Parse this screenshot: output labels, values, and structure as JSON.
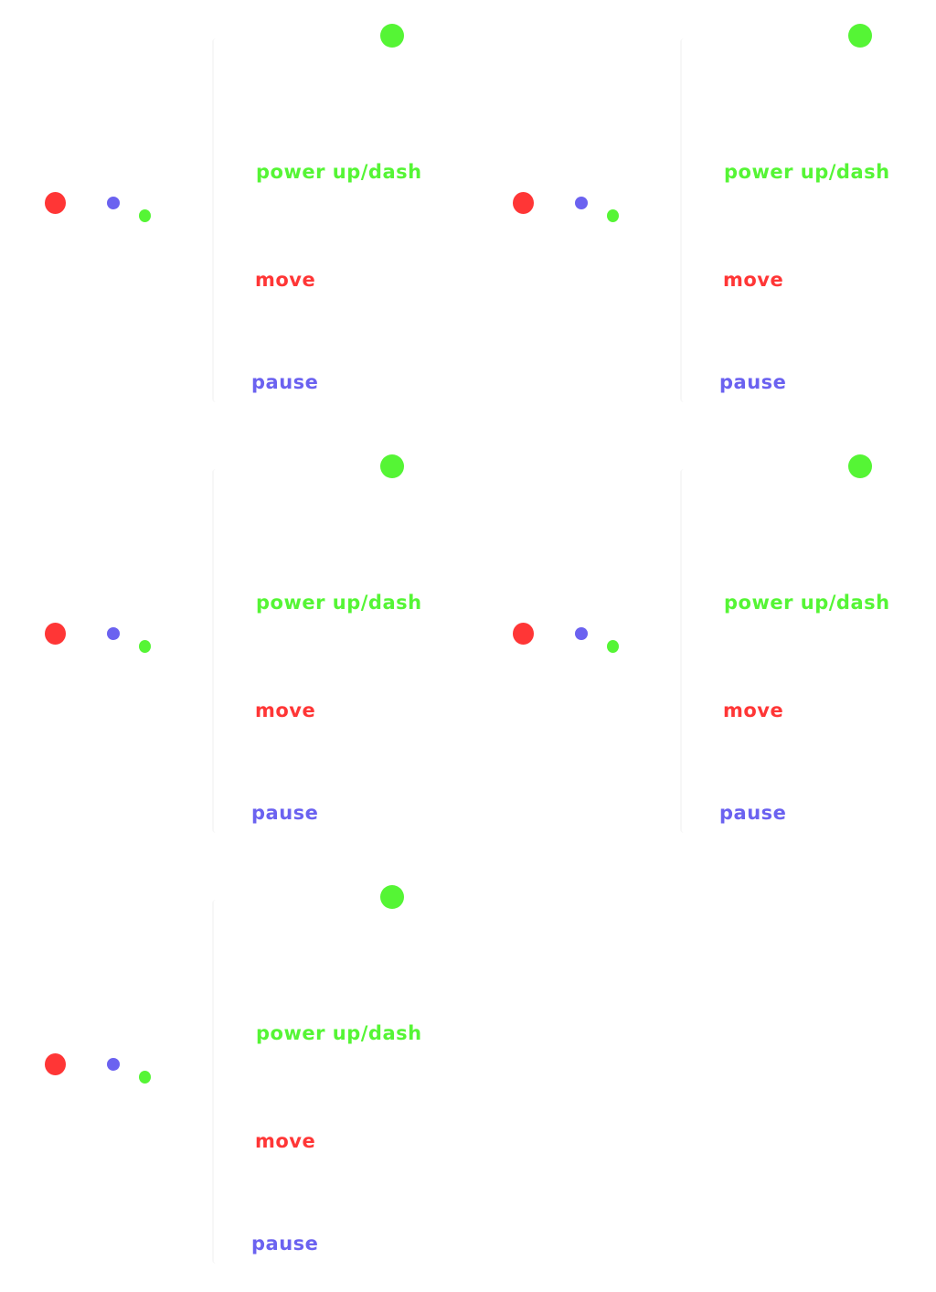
{
  "colors": {
    "red": "#ff3636",
    "blue": "#6b62f0",
    "green": "#55f535"
  },
  "icons": {
    "move_button": "red-dot-icon",
    "pause_button": "blue-dot-icon",
    "dash_button": "green-dot-icon"
  },
  "panels": [
    {
      "labels": {
        "dash": "power up/dash",
        "move": "move",
        "pause": "pause"
      }
    },
    {
      "labels": {
        "dash": "power up/dash",
        "move": "move",
        "pause": "pause"
      }
    },
    {
      "labels": {
        "dash": "power up/dash",
        "move": "move",
        "pause": "pause"
      }
    },
    {
      "labels": {
        "dash": "power up/dash",
        "move": "move",
        "pause": "pause"
      }
    },
    {
      "labels": {
        "dash": "power up/dash",
        "move": "move",
        "pause": "pause"
      }
    }
  ]
}
